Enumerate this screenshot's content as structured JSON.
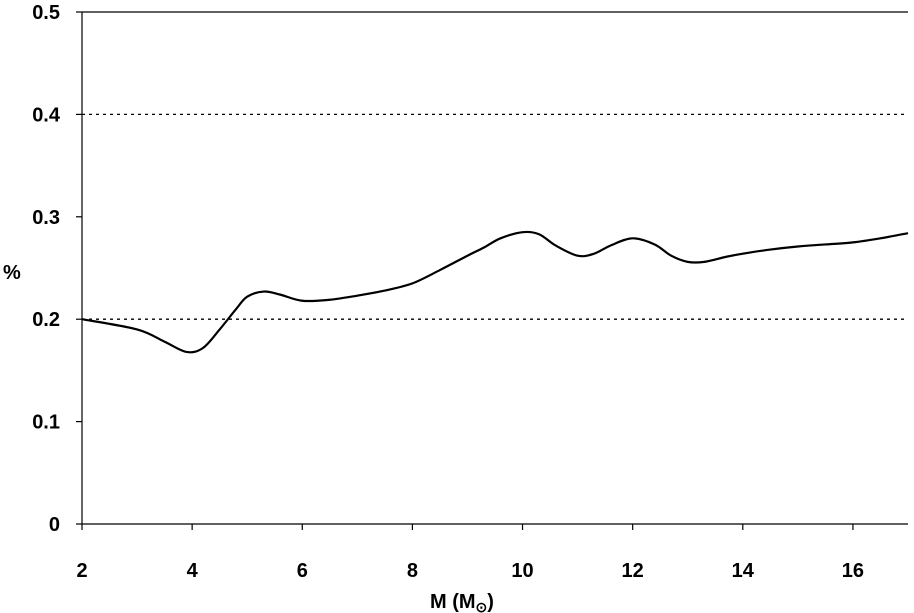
{
  "chart_data": {
    "type": "line",
    "title": "",
    "xlabel": "M (M",
    "xlabel_sub": "⊙",
    "xlabel_close": ")",
    "ylabel": "%",
    "xlim": [
      2,
      17
    ],
    "ylim": [
      0,
      0.5
    ],
    "xticks": [
      2,
      4,
      6,
      8,
      10,
      12,
      14,
      16
    ],
    "yticks": [
      0,
      0.1,
      0.2,
      0.3,
      0.4,
      0.5
    ],
    "xtick_labels": [
      "2",
      "4",
      "6",
      "8",
      "10",
      "12",
      "14",
      "16"
    ],
    "ytick_labels": [
      "0",
      "0.1",
      "0.2",
      "0.3",
      "0.4",
      "0.5"
    ],
    "reference_lines": [
      0.2,
      0.4
    ],
    "grid": false,
    "colors": {
      "line": "#000000",
      "reference": "#000000"
    },
    "series": [
      {
        "x": [
          2,
          3,
          3.5,
          3.9,
          4.2,
          4.5,
          4.8,
          5.0,
          5.3,
          5.6,
          6.0,
          6.5,
          7.0,
          7.5,
          8.0,
          8.5,
          9.0,
          9.3,
          9.6,
          10.0,
          10.3,
          10.6,
          11.0,
          11.3,
          11.6,
          12.0,
          12.4,
          12.7,
          13.0,
          13.3,
          13.7,
          14.0,
          14.5,
          15.0,
          15.5,
          16.0,
          16.5,
          17.0
        ],
        "y": [
          0.2,
          0.19,
          0.178,
          0.168,
          0.172,
          0.19,
          0.21,
          0.222,
          0.227,
          0.224,
          0.218,
          0.219,
          0.223,
          0.228,
          0.235,
          0.248,
          0.262,
          0.27,
          0.279,
          0.285,
          0.283,
          0.272,
          0.262,
          0.264,
          0.272,
          0.279,
          0.273,
          0.262,
          0.256,
          0.256,
          0.261,
          0.264,
          0.268,
          0.271,
          0.273,
          0.275,
          0.279,
          0.284
        ]
      }
    ]
  }
}
